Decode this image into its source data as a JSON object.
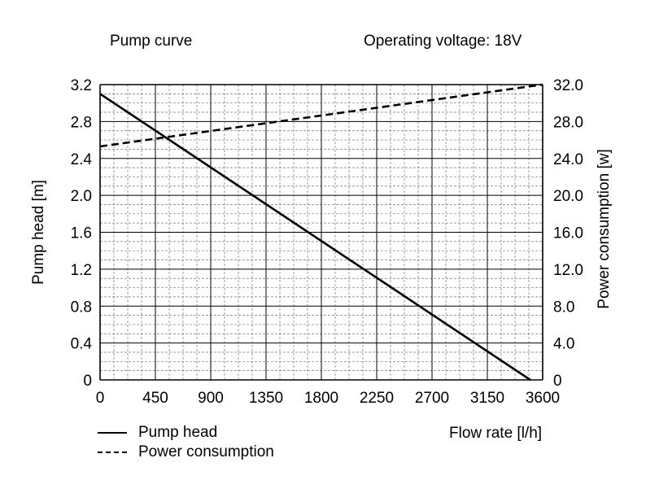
{
  "chart_data": {
    "type": "line",
    "title_left": "Pump curve",
    "title_right": "Operating voltage: 18V",
    "xlabel": "Flow rate [l/h]",
    "ylabel_left": "Pump head [m]",
    "ylabel_right": "Power consumption [w]",
    "xlim": [
      0,
      3600
    ],
    "ylim_left": [
      0,
      3.2
    ],
    "ylim_right": [
      0,
      32.0
    ],
    "x_ticks": [
      "0",
      "450",
      "900",
      "1350",
      "1800",
      "2250",
      "2700",
      "3150",
      "3600"
    ],
    "y_ticks_left": [
      "0",
      "0.4",
      "0.8",
      "1.2",
      "1.6",
      "2.0",
      "2.4",
      "2.8",
      "3.2"
    ],
    "y_ticks_right": [
      "0",
      "4.0",
      "8.0",
      "12.0",
      "16.0",
      "20.0",
      "24.0",
      "28.0",
      "32.0"
    ],
    "grid": true,
    "legend_position": "bottom-left",
    "series": [
      {
        "name": "Pump head",
        "axis": "left",
        "style": "solid",
        "x": [
          0,
          3500
        ],
        "y": [
          3.1,
          0
        ]
      },
      {
        "name": "Power consumption",
        "axis": "right",
        "style": "dashed",
        "x": [
          0,
          3600
        ],
        "y": [
          25.3,
          32.0
        ]
      }
    ]
  }
}
